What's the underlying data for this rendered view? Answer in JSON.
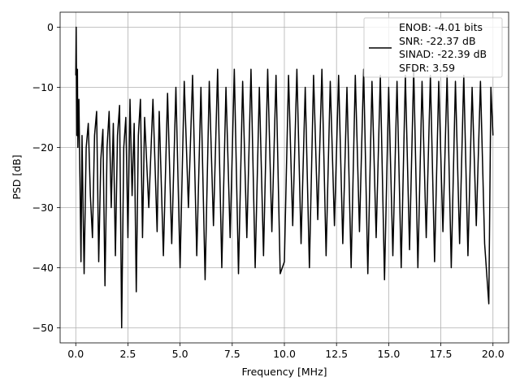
{
  "chart_data": {
    "type": "line",
    "title": "",
    "xlabel": "Frequency [MHz]",
    "ylabel": "PSD [dB]",
    "xlim": [
      -0.75,
      20.75
    ],
    "ylim": [
      -52.5,
      2.5
    ],
    "x_ticks": [
      {
        "value": 0,
        "label": "0.0"
      },
      {
        "value": 2.5,
        "label": "2.5"
      },
      {
        "value": 5,
        "label": "5.0"
      },
      {
        "value": 7.5,
        "label": "7.5"
      },
      {
        "value": 10,
        "label": "10.0"
      },
      {
        "value": 12.5,
        "label": "12.5"
      },
      {
        "value": 15,
        "label": "15.0"
      },
      {
        "value": 17.5,
        "label": "17.5"
      },
      {
        "value": 20,
        "label": "20.0"
      }
    ],
    "y_ticks": [
      {
        "value": 0,
        "label": "0"
      },
      {
        "value": -10,
        "label": "−10"
      },
      {
        "value": -20,
        "label": "−20"
      },
      {
        "value": -30,
        "label": "−30"
      },
      {
        "value": -40,
        "label": "−40"
      },
      {
        "value": -50,
        "label": "−50"
      }
    ],
    "grid": true,
    "legend_position": "top-right",
    "legend_entries": [
      "ENOB: -4.01 bits",
      "SNR: -22.37 dB",
      "SINAD: -22.39 dB",
      "SFDR: 3.59"
    ],
    "series": [
      {
        "color": "#000000",
        "points": [
          [
            0.0,
            -8
          ],
          [
            0.02,
            0
          ],
          [
            0.05,
            -18
          ],
          [
            0.08,
            -7
          ],
          [
            0.1,
            -20
          ],
          [
            0.15,
            -12
          ],
          [
            0.2,
            -25
          ],
          [
            0.25,
            -39
          ],
          [
            0.3,
            -18
          ],
          [
            0.35,
            -30
          ],
          [
            0.4,
            -41
          ],
          [
            0.5,
            -20
          ],
          [
            0.6,
            -16
          ],
          [
            0.7,
            -28
          ],
          [
            0.8,
            -35
          ],
          [
            0.9,
            -18
          ],
          [
            1.0,
            -14
          ],
          [
            1.1,
            -39
          ],
          [
            1.2,
            -22
          ],
          [
            1.3,
            -17
          ],
          [
            1.4,
            -43
          ],
          [
            1.5,
            -20
          ],
          [
            1.6,
            -14
          ],
          [
            1.7,
            -30
          ],
          [
            1.8,
            -16
          ],
          [
            1.9,
            -38
          ],
          [
            2.0,
            -18
          ],
          [
            2.1,
            -13
          ],
          [
            2.2,
            -50
          ],
          [
            2.3,
            -20
          ],
          [
            2.4,
            -15
          ],
          [
            2.5,
            -35
          ],
          [
            2.6,
            -12
          ],
          [
            2.7,
            -28
          ],
          [
            2.8,
            -16
          ],
          [
            2.9,
            -44
          ],
          [
            3.0,
            -18
          ],
          [
            3.1,
            -12
          ],
          [
            3.2,
            -35
          ],
          [
            3.3,
            -15
          ],
          [
            3.5,
            -30
          ],
          [
            3.7,
            -12
          ],
          [
            3.9,
            -34
          ],
          [
            4.0,
            -14
          ],
          [
            4.2,
            -38
          ],
          [
            4.4,
            -11
          ],
          [
            4.6,
            -36
          ],
          [
            4.8,
            -10
          ],
          [
            5.0,
            -40
          ],
          [
            5.2,
            -9
          ],
          [
            5.4,
            -30
          ],
          [
            5.6,
            -8
          ],
          [
            5.8,
            -38
          ],
          [
            6.0,
            -10
          ],
          [
            6.2,
            -42
          ],
          [
            6.4,
            -9
          ],
          [
            6.6,
            -33
          ],
          [
            6.8,
            -7
          ],
          [
            7.0,
            -40
          ],
          [
            7.2,
            -10
          ],
          [
            7.4,
            -35
          ],
          [
            7.6,
            -7
          ],
          [
            7.8,
            -41
          ],
          [
            8.0,
            -9
          ],
          [
            8.2,
            -35
          ],
          [
            8.4,
            -7
          ],
          [
            8.6,
            -40
          ],
          [
            8.8,
            -10
          ],
          [
            9.0,
            -38
          ],
          [
            9.2,
            -7
          ],
          [
            9.4,
            -34
          ],
          [
            9.6,
            -8
          ],
          [
            9.8,
            -41
          ],
          [
            10.0,
            -39
          ],
          [
            10.2,
            -8
          ],
          [
            10.4,
            -33
          ],
          [
            10.6,
            -7
          ],
          [
            10.8,
            -36
          ],
          [
            11.0,
            -10
          ],
          [
            11.2,
            -40
          ],
          [
            11.4,
            -8
          ],
          [
            11.6,
            -32
          ],
          [
            11.8,
            -7
          ],
          [
            12.0,
            -38
          ],
          [
            12.2,
            -9
          ],
          [
            12.4,
            -33
          ],
          [
            12.6,
            -8
          ],
          [
            12.8,
            -36
          ],
          [
            13.0,
            -10
          ],
          [
            13.2,
            -40
          ],
          [
            13.4,
            -8
          ],
          [
            13.6,
            -34
          ],
          [
            13.8,
            -7
          ],
          [
            14.0,
            -41
          ],
          [
            14.2,
            -9
          ],
          [
            14.4,
            -35
          ],
          [
            14.6,
            -8
          ],
          [
            14.8,
            -42
          ],
          [
            15.0,
            -10
          ],
          [
            15.2,
            -38
          ],
          [
            15.4,
            -9
          ],
          [
            15.6,
            -40
          ],
          [
            15.8,
            -8
          ],
          [
            16.0,
            -37
          ],
          [
            16.2,
            -7
          ],
          [
            16.4,
            -40
          ],
          [
            16.6,
            -9
          ],
          [
            16.8,
            -35
          ],
          [
            17.0,
            -8
          ],
          [
            17.2,
            -39
          ],
          [
            17.4,
            -9
          ],
          [
            17.6,
            -34
          ],
          [
            17.8,
            -8
          ],
          [
            18.0,
            -40
          ],
          [
            18.2,
            -9
          ],
          [
            18.4,
            -36
          ],
          [
            18.6,
            -8
          ],
          [
            18.8,
            -38
          ],
          [
            19.0,
            -10
          ],
          [
            19.2,
            -33
          ],
          [
            19.4,
            -9
          ],
          [
            19.6,
            -36
          ],
          [
            19.8,
            -46
          ],
          [
            19.9,
            -10
          ],
          [
            20.0,
            -18
          ]
        ]
      }
    ]
  }
}
